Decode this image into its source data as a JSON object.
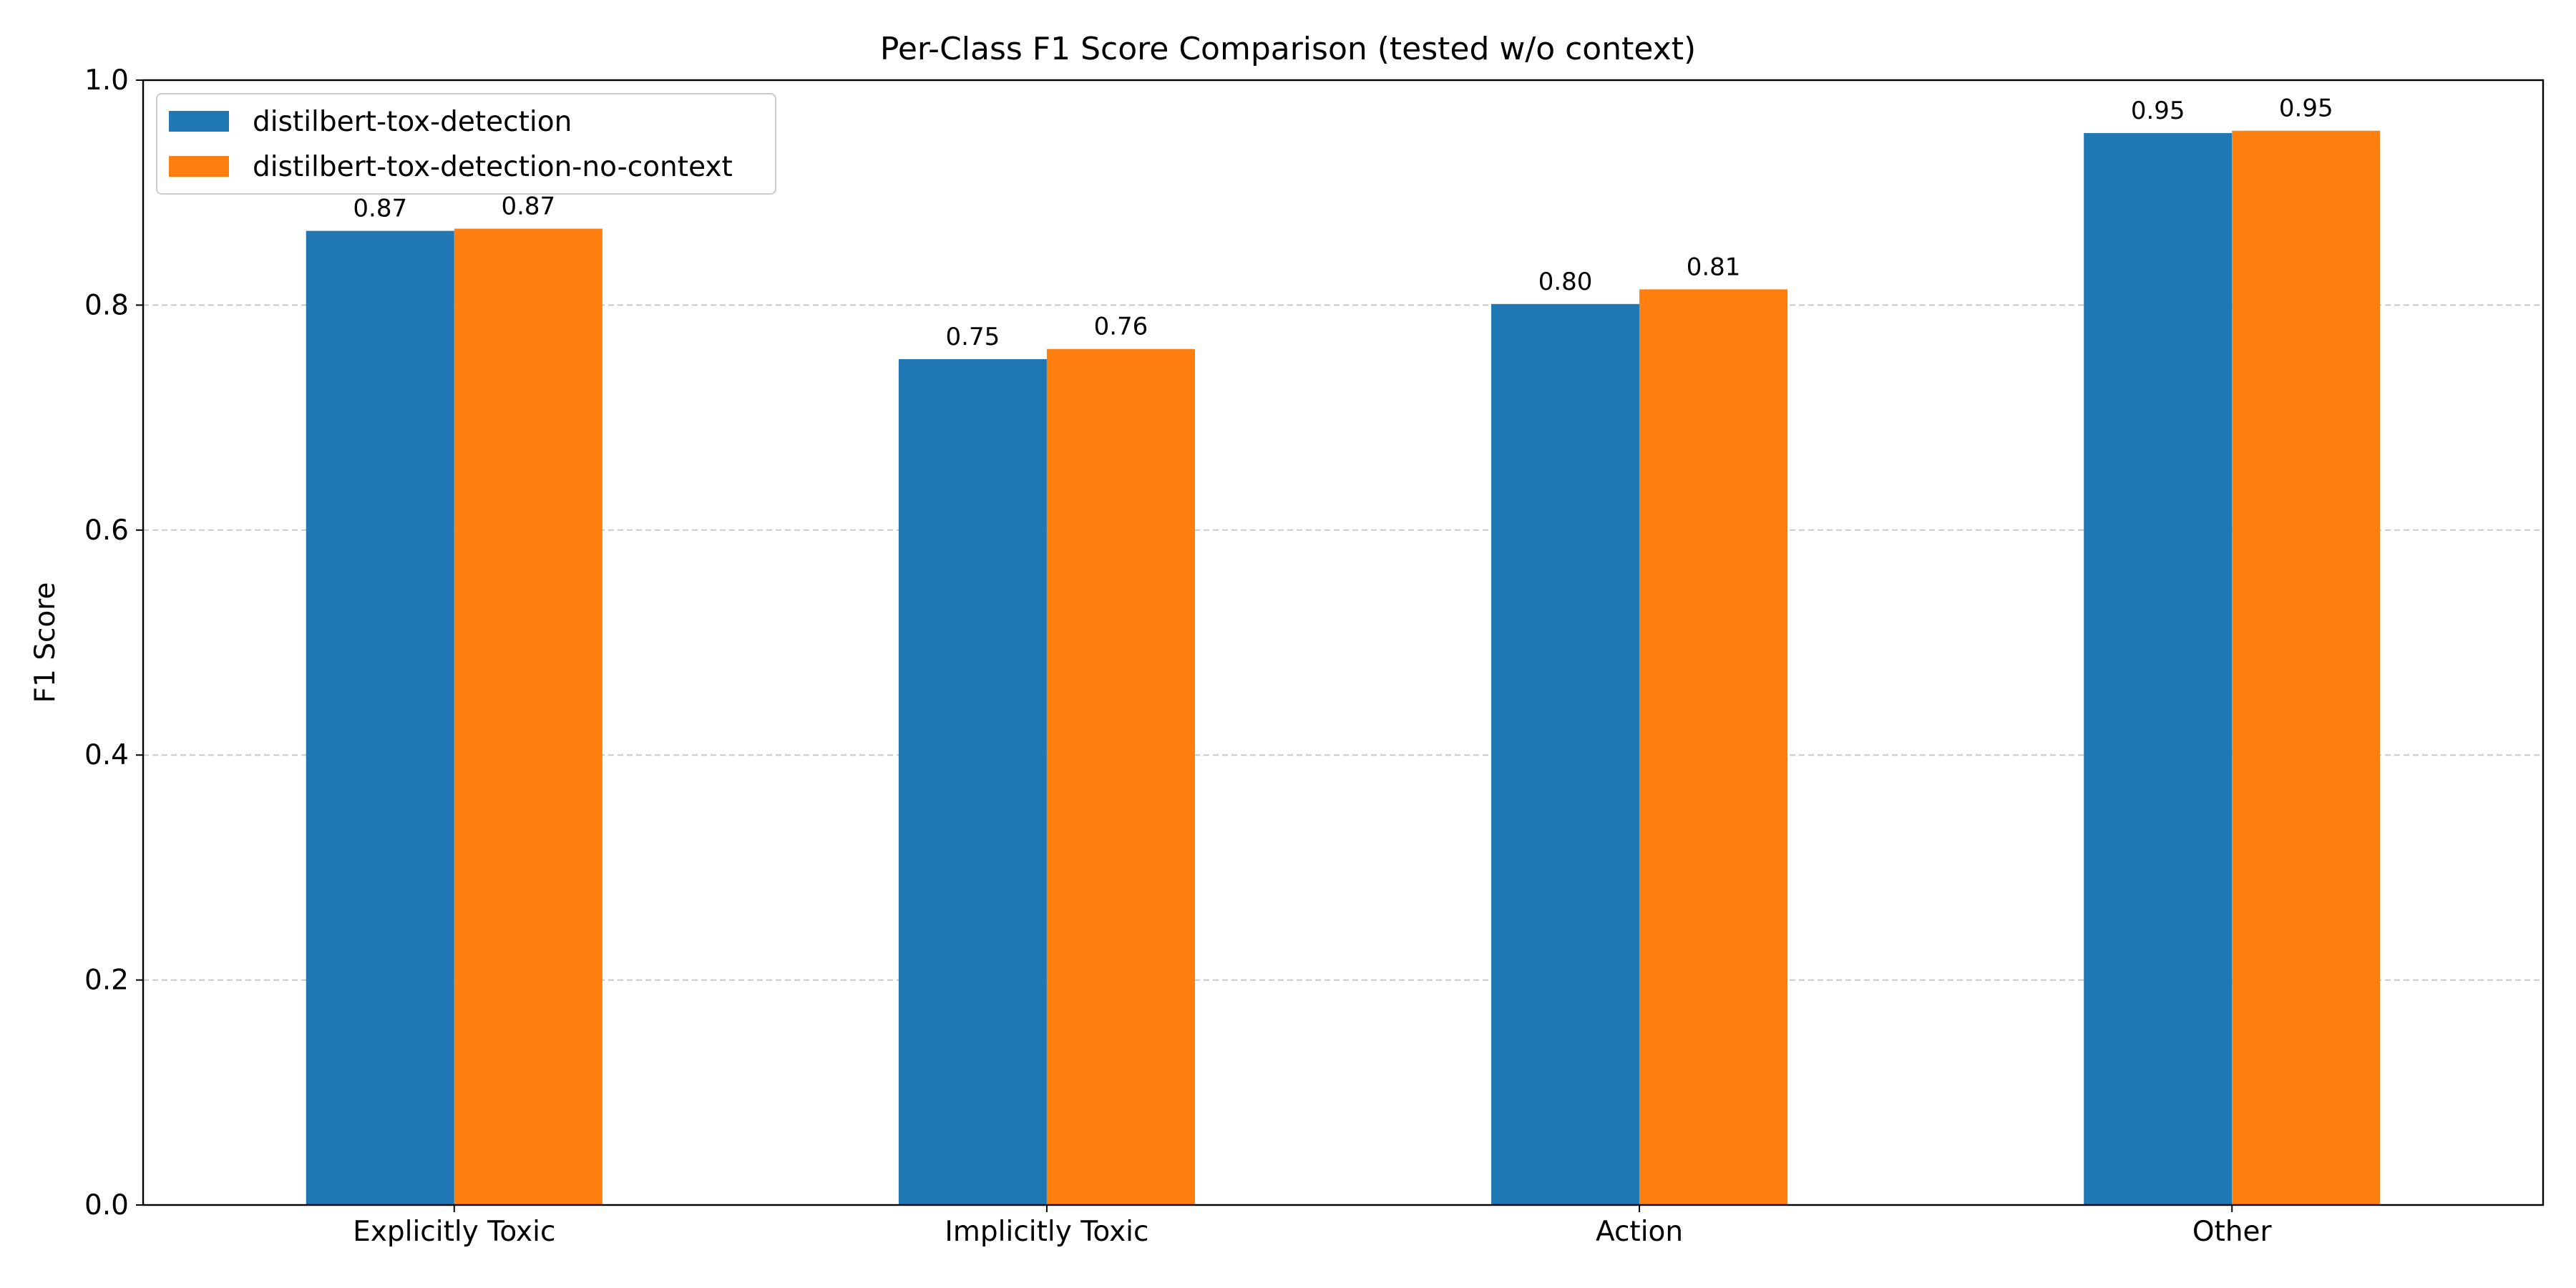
{
  "chart_data": {
    "type": "bar",
    "title": "Per-Class F1 Score Comparison (tested w/o context)",
    "xlabel": "",
    "ylabel": "F1 Score",
    "categories": [
      "Explicitly Toxic",
      "Implicitly Toxic",
      "Action",
      "Other"
    ],
    "series": [
      {
        "name": "distilbert-tox-detection",
        "values": [
          0.866,
          0.752,
          0.801,
          0.953
        ],
        "labels": [
          "0.87",
          "0.75",
          "0.80",
          "0.95"
        ],
        "color": "#1f77b4"
      },
      {
        "name": "distilbert-tox-detection-no-context",
        "values": [
          0.868,
          0.761,
          0.814,
          0.955
        ],
        "labels": [
          "0.87",
          "0.76",
          "0.81",
          "0.95"
        ],
        "color": "#ff7f0e"
      }
    ],
    "ylim": [
      0,
      1.0
    ],
    "yticks": [
      0.0,
      0.2,
      0.4,
      0.6,
      0.8,
      1.0
    ],
    "ytick_labels": [
      "0.0",
      "0.2",
      "0.4",
      "0.6",
      "0.8",
      "1.0"
    ],
    "grid": "y-dashed",
    "legend_position": "top-left"
  }
}
